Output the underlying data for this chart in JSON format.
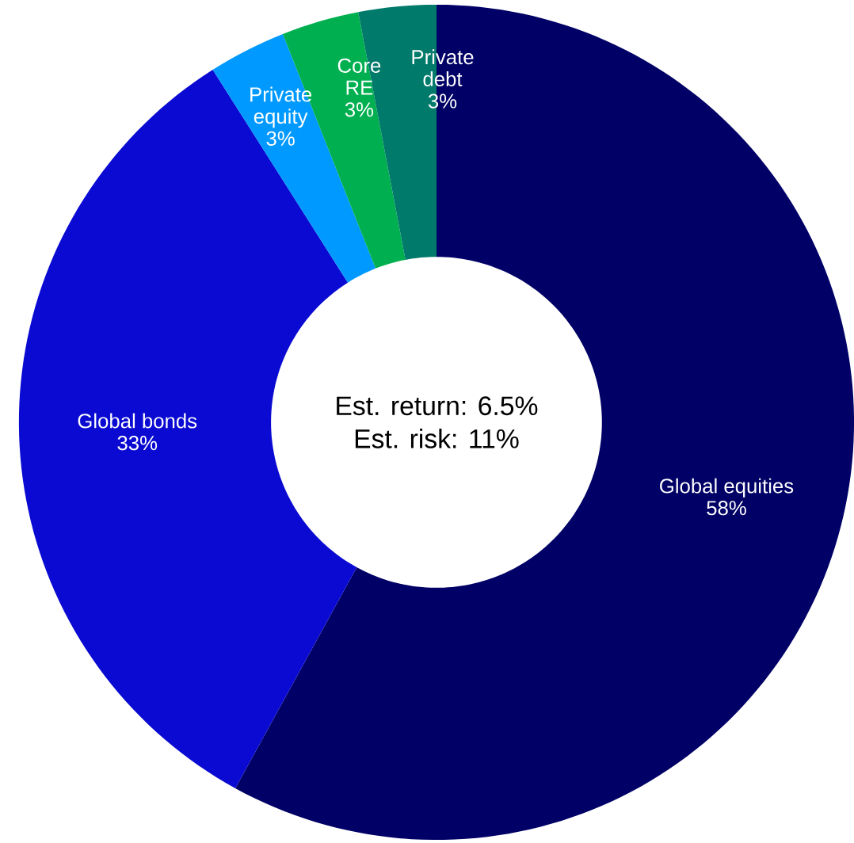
{
  "chart_data": {
    "type": "donut",
    "categories": [
      "Global equities",
      "Global bonds",
      "Private equity",
      "Core RE",
      "Private debt"
    ],
    "values": [
      58,
      33,
      3,
      3,
      3
    ],
    "value_labels": [
      "58%",
      "33%",
      "3%",
      "3%",
      "3%"
    ],
    "colors": [
      "#000066",
      "#0a0ad2",
      "#0099ff",
      "#00b050",
      "#007a6a"
    ],
    "annotations": [
      "Est. return: 6.5%",
      "Est. risk: 11%"
    ]
  }
}
